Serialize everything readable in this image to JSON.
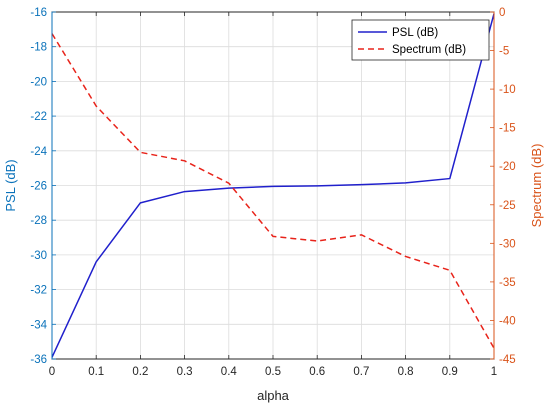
{
  "chart_data": {
    "type": "line",
    "title": "",
    "xlabel": "alpha",
    "ylabel_left": "PSL (dB)",
    "ylabel_right": "Spectrum (dB)",
    "xlim": [
      0,
      1
    ],
    "ylim_left": [
      -36,
      -16
    ],
    "ylim_right": [
      -45,
      0
    ],
    "x_ticks": [
      0,
      0.1,
      0.2,
      0.3,
      0.4,
      0.5,
      0.6,
      0.7,
      0.8,
      0.9,
      1
    ],
    "x_tick_labels": [
      "0",
      "0.1",
      "0.2",
      "0.3",
      "0.4",
      "0.5",
      "0.6",
      "0.7",
      "0.8",
      "0.9",
      "1"
    ],
    "y_left_ticks": [
      -36,
      -34,
      -32,
      -30,
      -28,
      -26,
      -24,
      -22,
      -20,
      -18,
      -16
    ],
    "y_left_tick_labels": [
      "-36",
      "-34",
      "-32",
      "-30",
      "-28",
      "-26",
      "-24",
      "-22",
      "-20",
      "-18",
      "-16"
    ],
    "y_right_ticks": [
      -45,
      -40,
      -35,
      -30,
      -25,
      -20,
      -15,
      -10,
      -5,
      0
    ],
    "y_right_tick_labels": [
      "-45",
      "-40",
      "-35",
      "-30",
      "-25",
      "-20",
      "-15",
      "-10",
      "-5",
      "0"
    ],
    "grid": true,
    "legend_position": "top-right",
    "x": [
      0,
      0.1,
      0.2,
      0.3,
      0.4,
      0.5,
      0.6,
      0.7,
      0.8,
      0.9,
      1
    ],
    "series": [
      {
        "name": "PSL (dB)",
        "axis": "left",
        "style": "solid",
        "color": "#2020cc",
        "values": [
          -35.9,
          -30.4,
          -27.0,
          -26.35,
          -26.15,
          -26.05,
          -26.02,
          -25.95,
          -25.85,
          -25.6,
          -16.1
        ]
      },
      {
        "name": "Spectrum (dB)",
        "axis": "right",
        "style": "dashed",
        "color": "#e8231a",
        "values": [
          -2.8,
          -12.2,
          -18.2,
          -19.3,
          -22.2,
          -29.1,
          -29.7,
          -28.9,
          -31.7,
          -33.5,
          -43.6
        ]
      }
    ],
    "colors": {
      "left_axis": "#0a72ba",
      "right_axis": "#d95319",
      "grid": "#dcdcdc"
    }
  }
}
